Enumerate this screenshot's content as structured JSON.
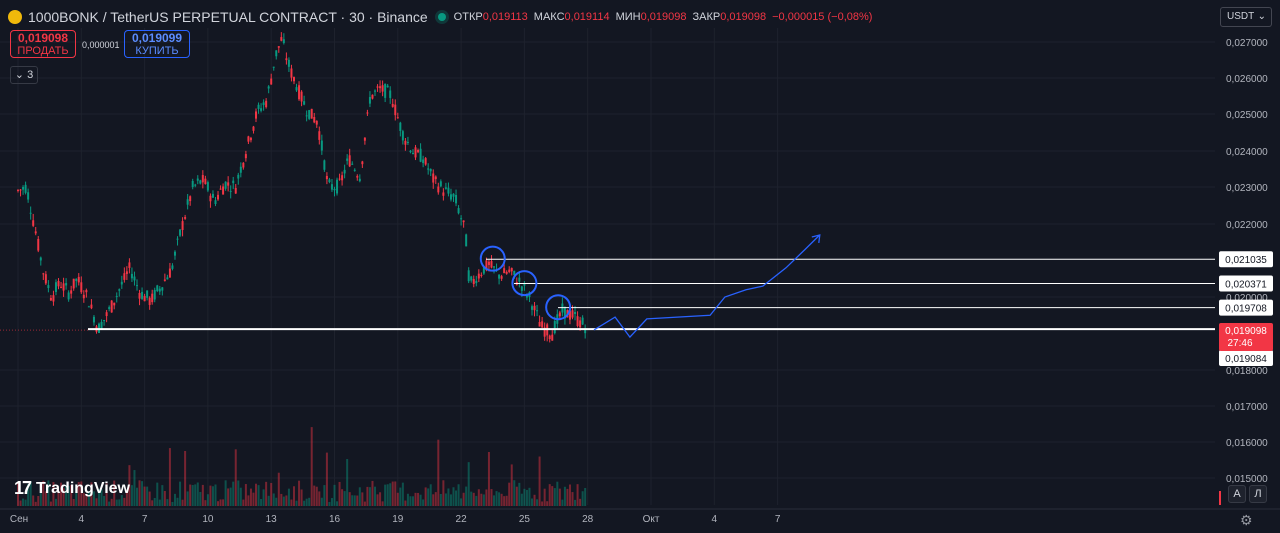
{
  "header": {
    "symbol": "1000BONK / TetherUS PERPETUAL CONTRACT · 30 · Binance",
    "open_label": "ОТКР",
    "open_value": "0,019113",
    "high_label": "МАКС",
    "high_value": "0,019114",
    "low_label": "МИН",
    "low_value": "0,019098",
    "close_label": "ЗАКР",
    "close_value": "0,019098",
    "change": "−0,000015 (−0,08%)"
  },
  "trade": {
    "sell_price": "0,019098",
    "sell_label": "ПРОДАТЬ",
    "spread": "0,000001",
    "buy_price": "0,019099",
    "buy_label": "КУПИТЬ",
    "collapsed_count": "3",
    "collapse_icon": "chevron-down-icon"
  },
  "currency": "USDT",
  "branding": "TradingView",
  "bottom_buttons": {
    "auto": "А",
    "log": "Л"
  },
  "colors": {
    "background": "#131722",
    "up": "#089981",
    "down": "#f23645",
    "drawing": "#2962ff",
    "level_line": "#ffffff"
  },
  "chart_data": {
    "type": "candlestick",
    "y_axis_ticks": [
      "0,027000",
      "0,026000",
      "0,025000",
      "0,024000",
      "0,023000",
      "0,022000",
      "0,020000",
      "0,018000",
      "0,017000",
      "0,016000",
      "0,015000"
    ],
    "x_axis_ticks": [
      "Сен",
      "4",
      "7",
      "10",
      "13",
      "16",
      "19",
      "22",
      "25",
      "28",
      "Окт",
      "4",
      "7"
    ],
    "ylim": [
      0.0147,
      0.0274
    ],
    "grid": true,
    "close_path": [
      {
        "x": 1.0,
        "y": 0.0229
      },
      {
        "x": 1.4,
        "y": 0.023
      },
      {
        "x": 1.8,
        "y": 0.0219
      },
      {
        "x": 2.2,
        "y": 0.0207
      },
      {
        "x": 2.6,
        "y": 0.02
      },
      {
        "x": 3.0,
        "y": 0.0204
      },
      {
        "x": 3.4,
        "y": 0.0201
      },
      {
        "x": 3.8,
        "y": 0.0205
      },
      {
        "x": 4.3,
        "y": 0.02
      },
      {
        "x": 4.8,
        "y": 0.0191
      },
      {
        "x": 5.3,
        "y": 0.0196
      },
      {
        "x": 5.8,
        "y": 0.0202
      },
      {
        "x": 6.3,
        "y": 0.0208
      },
      {
        "x": 6.8,
        "y": 0.0201
      },
      {
        "x": 7.3,
        "y": 0.0199
      },
      {
        "x": 7.8,
        "y": 0.0203
      },
      {
        "x": 8.3,
        "y": 0.0208
      },
      {
        "x": 8.8,
        "y": 0.022
      },
      {
        "x": 9.3,
        "y": 0.023
      },
      {
        "x": 9.8,
        "y": 0.0232
      },
      {
        "x": 10.3,
        "y": 0.0226
      },
      {
        "x": 10.8,
        "y": 0.0231
      },
      {
        "x": 11.3,
        "y": 0.023
      },
      {
        "x": 11.8,
        "y": 0.024
      },
      {
        "x": 12.3,
        "y": 0.025
      },
      {
        "x": 12.8,
        "y": 0.0254
      },
      {
        "x": 13.2,
        "y": 0.0266
      },
      {
        "x": 13.5,
        "y": 0.0271
      },
      {
        "x": 13.8,
        "y": 0.0264
      },
      {
        "x": 14.2,
        "y": 0.0258
      },
      {
        "x": 14.7,
        "y": 0.0251
      },
      {
        "x": 15.2,
        "y": 0.0248
      },
      {
        "x": 15.7,
        "y": 0.023
      },
      {
        "x": 16.2,
        "y": 0.023
      },
      {
        "x": 16.7,
        "y": 0.0238
      },
      {
        "x": 17.2,
        "y": 0.0233
      },
      {
        "x": 17.7,
        "y": 0.0255
      },
      {
        "x": 18.2,
        "y": 0.0257
      },
      {
        "x": 18.7,
        "y": 0.0255
      },
      {
        "x": 19.2,
        "y": 0.0245
      },
      {
        "x": 19.7,
        "y": 0.024
      },
      {
        "x": 20.2,
        "y": 0.0238
      },
      {
        "x": 20.7,
        "y": 0.0232
      },
      {
        "x": 21.2,
        "y": 0.0229
      },
      {
        "x": 21.7,
        "y": 0.0227
      },
      {
        "x": 22.2,
        "y": 0.0218
      },
      {
        "x": 22.4,
        "y": 0.0203
      },
      {
        "x": 22.8,
        "y": 0.0206
      },
      {
        "x": 23.3,
        "y": 0.0209
      },
      {
        "x": 23.8,
        "y": 0.0206
      },
      {
        "x": 24.3,
        "y": 0.0207
      },
      {
        "x": 24.8,
        "y": 0.0204
      },
      {
        "x": 25.3,
        "y": 0.0199
      },
      {
        "x": 25.8,
        "y": 0.0192
      },
      {
        "x": 26.3,
        "y": 0.019
      },
      {
        "x": 26.8,
        "y": 0.0196
      },
      {
        "x": 27.3,
        "y": 0.0195
      },
      {
        "x": 27.7,
        "y": 0.0193
      },
      {
        "x": 28.0,
        "y": 0.0191
      }
    ],
    "levels": [
      {
        "label": "0,021035",
        "value": 0.021035
      },
      {
        "label": "0,020371",
        "value": 0.020371
      },
      {
        "label": "0,019708",
        "value": 0.019708
      },
      {
        "label": "0,019084",
        "value": 0.019084
      }
    ],
    "support_level": 0.01912,
    "current_price": {
      "label": "0,019098",
      "countdown": "27:46",
      "value": 0.019098
    },
    "circles": [
      {
        "x": 23.5,
        "y": 0.02105
      },
      {
        "x": 25.0,
        "y": 0.02038
      },
      {
        "x": 26.6,
        "y": 0.01972
      }
    ],
    "projection": [
      {
        "x": 28.3,
        "y": 0.0191
      },
      {
        "x": 29.3,
        "y": 0.01945
      },
      {
        "x": 30.0,
        "y": 0.0189
      },
      {
        "x": 30.8,
        "y": 0.0194
      },
      {
        "x": 33.8,
        "y": 0.0195
      },
      {
        "x": 34.5,
        "y": 0.02
      },
      {
        "x": 35.5,
        "y": 0.0202
      },
      {
        "x": 36.3,
        "y": 0.0203
      },
      {
        "x": 37.4,
        "y": 0.0208
      },
      {
        "x": 38.3,
        "y": 0.0213
      },
      {
        "x": 39.0,
        "y": 0.0217
      }
    ]
  }
}
